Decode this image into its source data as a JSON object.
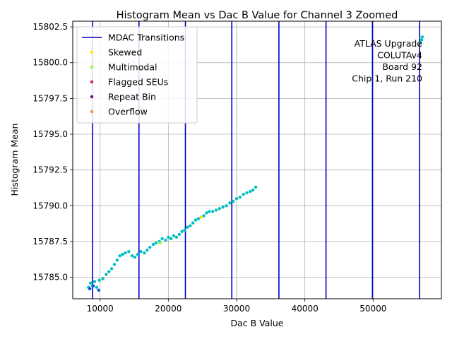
{
  "chart_data": {
    "type": "scatter",
    "title": "Histogram Mean vs Dac B Value for Channel 3 Zoomed",
    "xlabel": "Dac B Value",
    "ylabel": "Histogram Mean",
    "xlim": [
      6000,
      60000
    ],
    "ylim": [
      15783.5,
      15802.9
    ],
    "xticks": [
      10000,
      20000,
      30000,
      40000,
      50000
    ],
    "yticks": [
      15785.0,
      15787.5,
      15790.0,
      15792.5,
      15795.0,
      15797.5,
      15800.0,
      15802.5
    ],
    "ytick_labels": [
      "15785.0",
      "15787.5",
      "15790.0",
      "15792.5",
      "15795.0",
      "15797.5",
      "15800.0",
      "15802.5"
    ],
    "grid": true,
    "mdac_transitions": [
      8900,
      15700,
      22500,
      29300,
      36200,
      43100,
      49900,
      56800
    ],
    "colors": {
      "transition": "#0000cc",
      "points": "#00c0c0",
      "skewed": "#ffe400",
      "multimodal": "#8cff32",
      "flagged": "#e0204a",
      "repeat": "#6a0a8a",
      "overflow": "#ff8a40",
      "points_low": "#1050e0"
    },
    "legend": {
      "placement": "upper-left",
      "entries": [
        {
          "label": "MDAC Transitions",
          "kind": "line",
          "color": "#0000cc"
        },
        {
          "label": "Skewed",
          "kind": "dot",
          "color": "#ffe400"
        },
        {
          "label": "Multimodal",
          "kind": "dot",
          "color": "#8cff32"
        },
        {
          "label": "Flagged SEUs",
          "kind": "dot",
          "color": "#e0204a"
        },
        {
          "label": "Repeat Bin",
          "kind": "dot",
          "color": "#6a0a8a"
        },
        {
          "label": "Overflow",
          "kind": "dot",
          "color": "#ff8a40"
        }
      ]
    },
    "annotation": [
      "ATLAS Upgrade",
      "COLUTAv4",
      "Board 92",
      "Chip 1, Run 210"
    ],
    "series": [
      {
        "name": "points",
        "color": "#00c0c0",
        "x": [
          8300,
          8600,
          8900,
          9200,
          9500,
          9900,
          10400,
          10900,
          11300,
          11700,
          12100,
          12500,
          12900,
          13300,
          13700,
          14200,
          14700,
          15100,
          15500,
          16000,
          16500,
          16900,
          17300,
          17800,
          18200,
          18700,
          19100,
          19600,
          20000,
          20400,
          20800,
          21200,
          21600,
          22000,
          22400,
          22800,
          23200,
          23600,
          24000,
          24400,
          24800,
          25200,
          25600,
          26000,
          26500,
          27000,
          27500,
          28000,
          28500,
          29000,
          29500,
          30000,
          30500,
          31000,
          31500,
          32000,
          32400,
          32800,
          56900,
          57100,
          57200
        ],
        "y": [
          15784.3,
          15784.6,
          15784.4,
          15784.7,
          15784.3,
          15784.8,
          15784.9,
          15785.2,
          15785.4,
          15785.6,
          15785.9,
          15786.2,
          15786.5,
          15786.6,
          15786.7,
          15786.8,
          15786.5,
          15786.4,
          15786.6,
          15786.8,
          15786.7,
          15786.9,
          15787.1,
          15787.3,
          15787.4,
          15787.5,
          15787.7,
          15787.6,
          15787.8,
          15787.7,
          15787.9,
          15787.8,
          15788.0,
          15788.2,
          15788.3,
          15788.5,
          15788.6,
          15788.8,
          15789.0,
          15789.1,
          15789.2,
          15789.3,
          15789.5,
          15789.6,
          15789.6,
          15789.7,
          15789.8,
          15789.9,
          15790.0,
          15790.2,
          15790.3,
          15790.5,
          15790.6,
          15790.8,
          15790.9,
          15791.0,
          15791.1,
          15791.3,
          15801.4,
          15801.6,
          15801.8
        ]
      },
      {
        "name": "low",
        "color": "#1050e0",
        "x": [
          8500,
          9000,
          9800
        ],
        "y": [
          15784.2,
          15784.4,
          15784.1
        ]
      },
      {
        "name": "Skewed",
        "color": "#ffe400",
        "x": [
          24800
        ],
        "y": [
          15789.2
        ]
      },
      {
        "name": "Multimodal",
        "color": "#8cff32",
        "x": [
          18800
        ],
        "y": [
          15787.4
        ]
      }
    ]
  }
}
